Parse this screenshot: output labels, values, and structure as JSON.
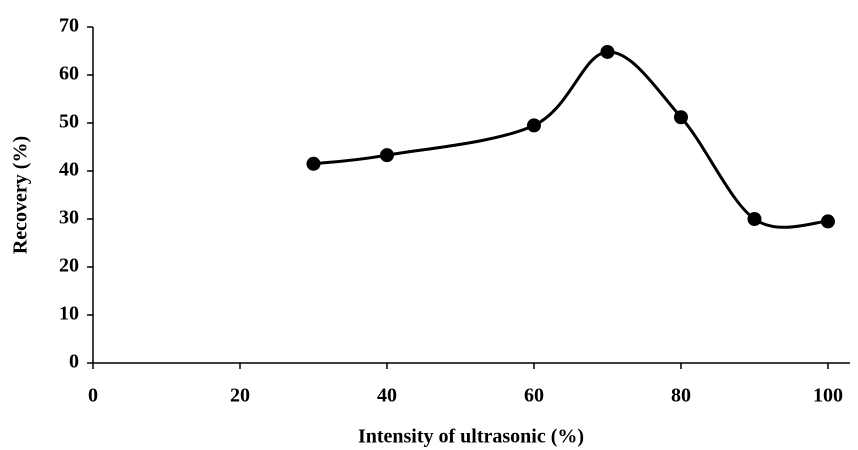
{
  "chart_data": {
    "type": "scatter",
    "smooth": true,
    "x_label": "Intensity of ultrasonic (%)",
    "y_label": "Recovery (%)",
    "x": [
      30,
      40,
      60,
      70,
      80,
      90,
      100
    ],
    "values": [
      41.5,
      43.3,
      49.5,
      64.8,
      51.2,
      30,
      29.5
    ],
    "color": "#000000",
    "xlim": [
      0,
      103
    ],
    "xticks": [
      0,
      20,
      40,
      60,
      80,
      100
    ],
    "ylim": [
      0,
      70
    ],
    "yticks": [
      0,
      10,
      20,
      30,
      40,
      50,
      60,
      70
    ],
    "grid": false
  }
}
